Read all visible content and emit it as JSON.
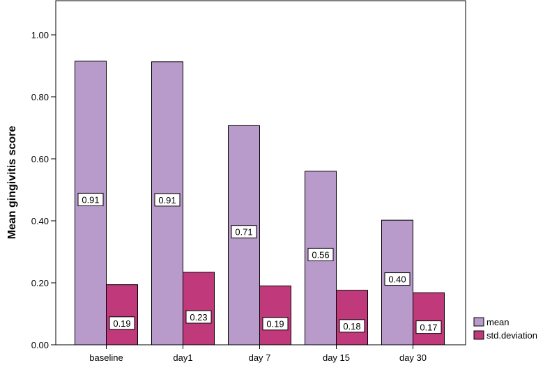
{
  "chart_data": {
    "type": "bar",
    "title": "",
    "xlabel": "",
    "ylabel": "Mean gingivitis score",
    "categories": [
      "baseline",
      "day1",
      "day 7",
      "day 15",
      "day 30"
    ],
    "series": [
      {
        "name": "mean",
        "values": [
          0.915,
          0.913,
          0.707,
          0.56,
          0.402
        ],
        "labels": [
          "0.91",
          "0.91",
          "0.71",
          "0.56",
          "0.40"
        ],
        "color": "#b89acb"
      },
      {
        "name": "std.deviation",
        "values": [
          0.194,
          0.234,
          0.19,
          0.176,
          0.168
        ],
        "labels": [
          "0.19",
          "0.23",
          "0.19",
          "0.18",
          "0.17"
        ],
        "color": "#c0397a"
      }
    ],
    "ylim": [
      0,
      1.1
    ],
    "yticks": [
      "0.00",
      "0.20",
      "0.40",
      "0.60",
      "0.80",
      "1.00"
    ],
    "ytick_values": [
      0,
      0.2,
      0.4,
      0.6,
      0.8,
      1.0
    ],
    "grid": false,
    "legend": "bottom-right"
  }
}
